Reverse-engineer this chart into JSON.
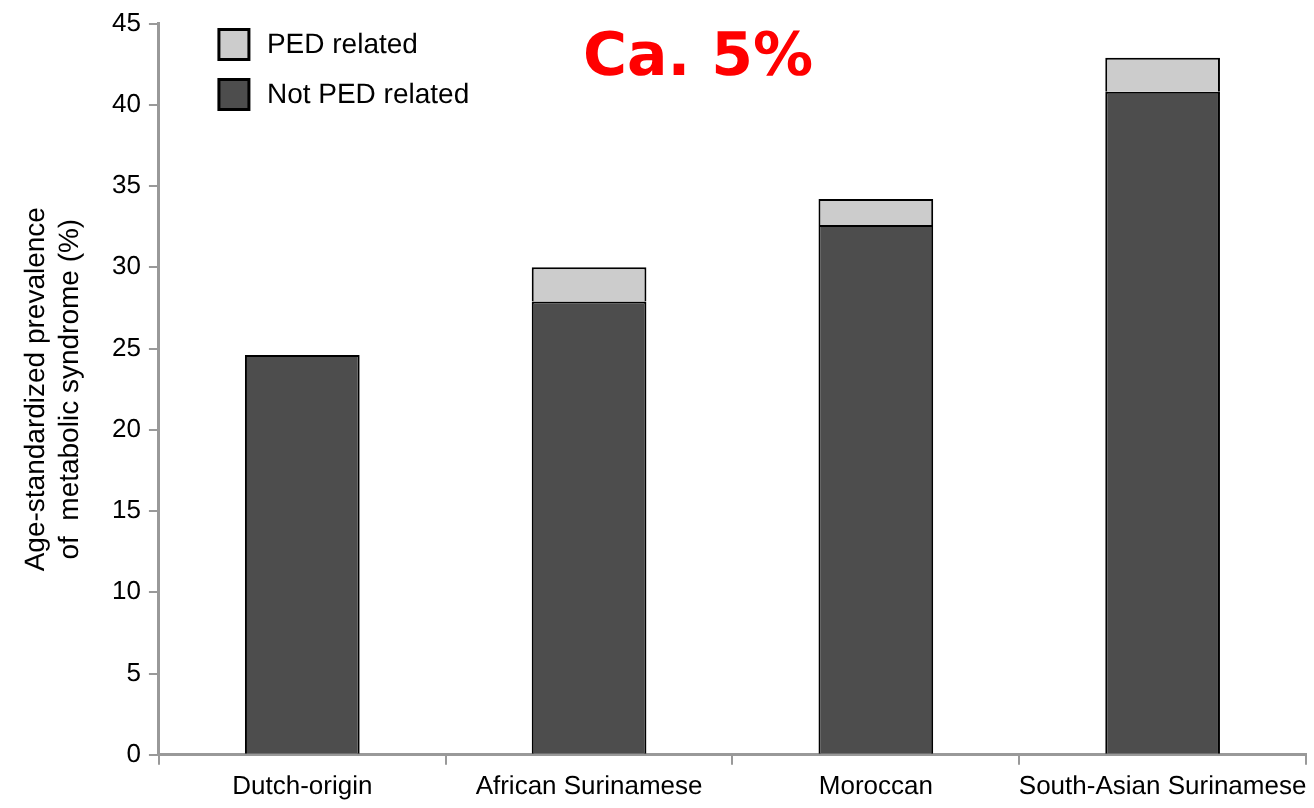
{
  "chart_data": {
    "type": "bar",
    "stacked": true,
    "ylabel": "Age-standardized prevalence\nof  metabolic syndrome (%)",
    "categories": [
      "Dutch-origin",
      "African Surinamese",
      "Moroccan",
      "South-Asian Surinamese"
    ],
    "series": [
      {
        "name": "Not PED related",
        "color": "#4d4d4d",
        "values": [
          24.6,
          27.9,
          32.6,
          40.8
        ]
      },
      {
        "name": "PED related",
        "color": "#cccccc",
        "values": [
          null,
          2.1,
          1.6,
          2.1
        ]
      }
    ],
    "ylim": [
      0,
      45
    ],
    "yticks": [
      0,
      5,
      10,
      15,
      20,
      25,
      30,
      35,
      40,
      45
    ],
    "grid": false,
    "legend": "top left",
    "annotations": [
      "Ca. 5%"
    ]
  }
}
